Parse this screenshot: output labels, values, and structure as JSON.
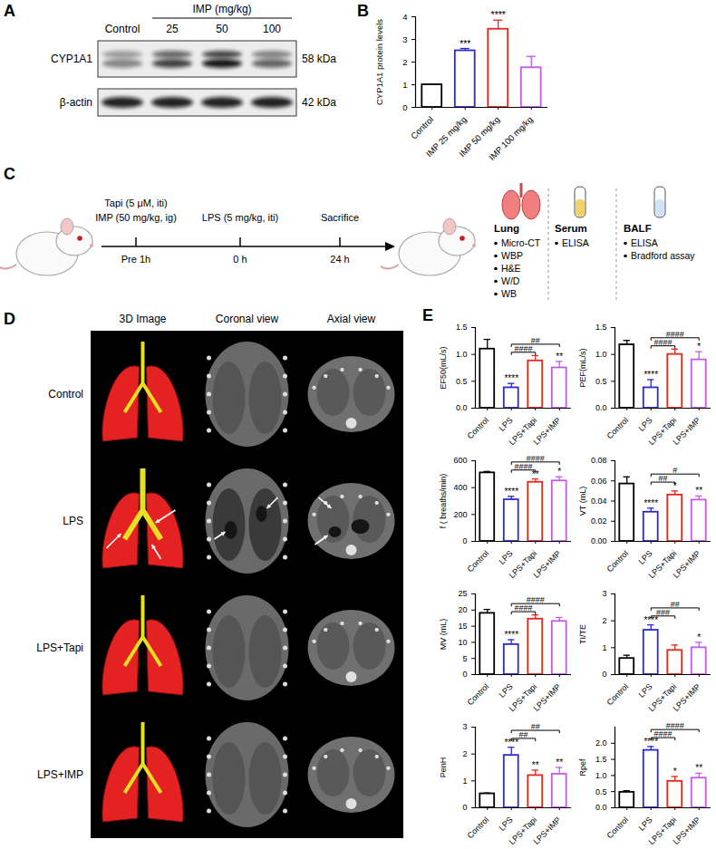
{
  "chart_data": [
    {
      "type": "bar",
      "y_label": "CYP1A1 protein levels",
      "categories": [
        "Control",
        "IMP 25 mg/kg",
        "IMP 50 mg/kg",
        "IMP 100 mg/kg"
      ],
      "values": [
        1,
        2.5,
        3.45,
        1.75
      ],
      "errors": [
        0,
        0.1,
        0.4,
        0.5
      ],
      "colors": [
        "#000000",
        "#2a2ad4",
        "#e5281e",
        "#c45be8"
      ],
      "ylim": [
        0,
        4
      ],
      "yticks": [
        0,
        1,
        2,
        3,
        4
      ],
      "stars": [
        null,
        "***",
        "****",
        null
      ]
    },
    {
      "type": "bar",
      "y_label": "EF50(mL/s)",
      "categories": [
        "Control",
        "LPS",
        "LPS+Tapi",
        "LPS+IMP"
      ],
      "values": [
        1.1,
        0.38,
        0.88,
        0.75
      ],
      "errors": [
        0.18,
        0.08,
        0.1,
        0.12
      ],
      "colors": [
        "#000000",
        "#2a2ad4",
        "#e5281e",
        "#c45be8"
      ],
      "ylim": [
        0,
        1.5
      ],
      "yticks": [
        {
          "value": 0,
          "label": "0.0"
        },
        0.5,
        {
          "value": 1,
          "label": "1.0"
        },
        1.5
      ],
      "stars": [
        null,
        "****",
        null,
        "**"
      ],
      "comparisons": [
        {
          "between": [
            "LPS",
            "LPS+Tapi"
          ],
          "label": "####"
        },
        {
          "between": [
            "LPS",
            "LPS+IMP"
          ],
          "label": "##"
        }
      ]
    },
    {
      "type": "bar",
      "y_label": "PEF(mL/s)",
      "categories": [
        "Control",
        "LPS",
        "LPS+Tapi",
        "LPS+IMP"
      ],
      "values": [
        1.18,
        0.38,
        1.0,
        0.9
      ],
      "errors": [
        0.08,
        0.15,
        0.1,
        0.15
      ],
      "colors": [
        "#000000",
        "#2a2ad4",
        "#e5281e",
        "#c45be8"
      ],
      "ylim": [
        0,
        1.5
      ],
      "yticks": [
        {
          "value": 0,
          "label": "0.0"
        },
        0.5,
        {
          "value": 1,
          "label": "1.0"
        },
        1.5
      ],
      "stars": [
        null,
        "****",
        null,
        "*"
      ],
      "comparisons": [
        {
          "between": [
            "LPS",
            "LPS+Tapi"
          ],
          "label": "####"
        },
        {
          "between": [
            "LPS",
            "LPS+IMP"
          ],
          "label": "####"
        }
      ]
    },
    {
      "type": "bar",
      "y_label": "f ( breaths/min)",
      "categories": [
        "Control",
        "LPS",
        "LPS+Tapi",
        "LPS+IMP"
      ],
      "values": [
        510,
        310,
        440,
        450
      ],
      "errors": [
        10,
        25,
        25,
        30
      ],
      "colors": [
        "#000000",
        "#2a2ad4",
        "#e5281e",
        "#c45be8"
      ],
      "ylim": [
        0,
        600
      ],
      "yticks": [
        0,
        200,
        400,
        600
      ],
      "stars": [
        null,
        "****",
        "**",
        "*"
      ],
      "comparisons": [
        {
          "between": [
            "LPS",
            "LPS+Tapi"
          ],
          "label": "####"
        },
        {
          "between": [
            "LPS",
            "LPS+IMP"
          ],
          "label": "####"
        }
      ]
    },
    {
      "type": "bar",
      "y_label": "VT (mL)",
      "categories": [
        "Control",
        "LPS",
        "LPS+Tapi",
        "LPS+IMP"
      ],
      "values": [
        0.057,
        0.029,
        0.046,
        0.041
      ],
      "errors": [
        0.007,
        0.004,
        0.004,
        0.004
      ],
      "colors": [
        "#000000",
        "#2a2ad4",
        "#e5281e",
        "#c45be8"
      ],
      "ylim": [
        0,
        0.08
      ],
      "yticks": [
        {
          "value": 0,
          "label": "0.00"
        },
        0.02,
        0.04,
        0.06,
        0.08
      ],
      "stars": [
        null,
        "****",
        "*",
        "**"
      ],
      "comparisons": [
        {
          "between": [
            "LPS",
            "LPS+Tapi"
          ],
          "label": "##"
        },
        {
          "between": [
            "LPS",
            "LPS+IMP"
          ],
          "label": "#"
        }
      ]
    },
    {
      "type": "bar",
      "y_label": "MV (mL)",
      "categories": [
        "Control",
        "LPS",
        "LPS+Tapi",
        "LPS+IMP"
      ],
      "values": [
        19,
        9.3,
        17.2,
        16.5
      ],
      "errors": [
        1.2,
        1.5,
        1.3,
        1.2
      ],
      "colors": [
        "#000000",
        "#2a2ad4",
        "#e5281e",
        "#c45be8"
      ],
      "ylim": [
        0,
        25
      ],
      "yticks": [
        0,
        5,
        10,
        15,
        20,
        25
      ],
      "stars": [
        null,
        "****",
        null,
        null
      ],
      "comparisons": [
        {
          "between": [
            "LPS",
            "LPS+Tapi"
          ],
          "label": "####"
        },
        {
          "between": [
            "LPS",
            "LPS+IMP"
          ],
          "label": "####"
        }
      ]
    },
    {
      "type": "bar",
      "y_label": "TI/TE",
      "categories": [
        "Control",
        "LPS",
        "LPS+Tapi",
        "LPS+IMP"
      ],
      "values": [
        0.6,
        1.65,
        0.9,
        1.0
      ],
      "errors": [
        0.12,
        0.2,
        0.2,
        0.2
      ],
      "colors": [
        "#000000",
        "#2a2ad4",
        "#e5281e",
        "#c45be8"
      ],
      "ylim": [
        0,
        3
      ],
      "yticks": [
        0,
        1,
        2,
        3
      ],
      "stars": [
        null,
        "****",
        null,
        "*"
      ],
      "comparisons": [
        {
          "between": [
            "LPS",
            "LPS+Tapi"
          ],
          "label": "###"
        },
        {
          "between": [
            "LPS",
            "LPS+IMP"
          ],
          "label": "##"
        }
      ]
    },
    {
      "type": "bar",
      "y_label": "PenH",
      "categories": [
        "Control",
        "LPS",
        "LPS+Tapi",
        "LPS+IMP"
      ],
      "values": [
        0.52,
        1.95,
        1.2,
        1.25
      ],
      "errors": [
        0.03,
        0.3,
        0.2,
        0.25
      ],
      "colors": [
        "#000000",
        "#2a2ad4",
        "#e5281e",
        "#c45be8"
      ],
      "ylim": [
        0,
        3
      ],
      "yticks": [
        0,
        1,
        2,
        3
      ],
      "stars": [
        null,
        "****",
        "**",
        "**"
      ],
      "comparisons": [
        {
          "between": [
            "LPS",
            "LPS+Tapi"
          ],
          "label": "##"
        },
        {
          "between": [
            "LPS",
            "LPS+IMP"
          ],
          "label": "##"
        }
      ]
    },
    {
      "type": "bar",
      "y_label": "Rpef",
      "categories": [
        "Control",
        "LPS",
        "LPS+Tapi",
        "LPS+IMP"
      ],
      "values": [
        0.48,
        1.78,
        0.82,
        0.92
      ],
      "errors": [
        0.05,
        0.12,
        0.15,
        0.15
      ],
      "colors": [
        "#000000",
        "#2a2ad4",
        "#e5281e",
        "#c45be8"
      ],
      "ylim": [
        0,
        2.5
      ],
      "yticks": [
        {
          "value": 0,
          "label": "0.0"
        },
        0.5,
        {
          "value": 1,
          "label": "1.0"
        },
        1.5,
        {
          "value": 2,
          "label": "2.0"
        }
      ],
      "stars": [
        null,
        "****",
        "*",
        "**"
      ],
      "comparisons": [
        {
          "between": [
            "LPS",
            "LPS+Tapi"
          ],
          "label": "####"
        },
        {
          "between": [
            "LPS",
            "LPS+IMP"
          ],
          "label": "####"
        }
      ]
    }
  ],
  "figure": {
    "panels": [
      "A",
      "B",
      "C",
      "D",
      "E"
    ],
    "blot": {
      "header": "IMP (mg/kg)",
      "lanes": [
        "Control",
        "25",
        "50",
        "100"
      ],
      "rows": [
        {
          "name": "CYP1A1",
          "size": "58 kDa"
        },
        {
          "name": "β-actin",
          "size": "42 kDa"
        }
      ]
    },
    "schematic": {
      "pretreatment": [
        "Tapi (5 μM, iti)",
        "IMP (50 mg/kg, ig)"
      ],
      "challenge": "LPS (5 mg/kg, iti)",
      "endpoint": "Sacrifice",
      "times": [
        "Pre 1h",
        "0 h",
        "24 h"
      ],
      "samples": [
        {
          "name": "Lung",
          "assays": [
            "Micro-CT",
            "WBP",
            "H&E",
            "W/D",
            "WB"
          ]
        },
        {
          "name": "Serum",
          "assays": [
            "ELISA"
          ]
        },
        {
          "name": "BALF",
          "assays": [
            "ELISA",
            "Bradford assay"
          ]
        }
      ]
    },
    "ct": {
      "columns": [
        "3D Image",
        "Coronal view",
        "Axial view"
      ],
      "rows": [
        "Control",
        "LPS",
        "LPS+Tapi",
        "LPS+IMP"
      ]
    }
  }
}
